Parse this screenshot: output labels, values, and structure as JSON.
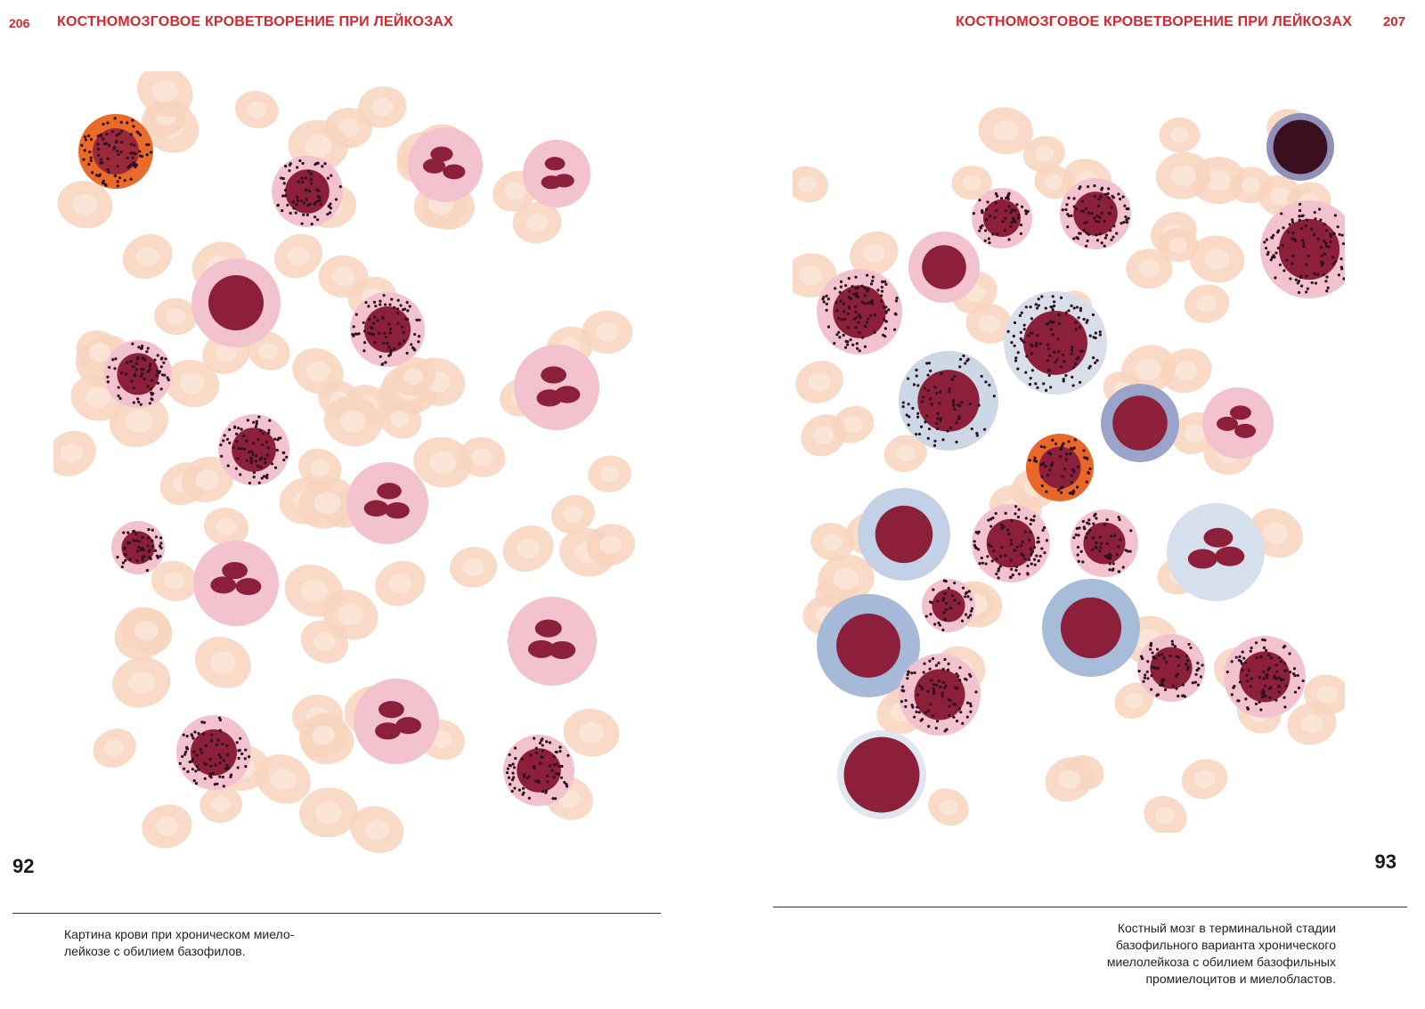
{
  "left_page": {
    "page_number": "206",
    "running_head": "КОСТНОМОЗГОВОЕ КРОВЕТВОРЕНИЕ ПРИ ЛЕЙКОЗАХ",
    "figure_number": "92",
    "caption_lines": [
      "Картина крови при хроническом миело-",
      "лейкозе с обилием базофилов."
    ]
  },
  "right_page": {
    "page_number": "207",
    "running_head": "КОСТНОМОЗГОВОЕ КРОВЕТВОРЕНИЕ ПРИ ЛЕЙКОЗАХ",
    "figure_number": "93",
    "caption_lines": [
      "Костный мозг в терминальной стадии",
      "базофильного варианта хронического",
      "миелолейкоза с обилием базофильных",
      "промиелоцитов и миелобластов."
    ]
  },
  "colors": {
    "accent_red": "#d7262e",
    "rbc": "#f7d3bd",
    "nucleus": "#8c1f3a",
    "cytoplasm_pink": "#f3c2cf",
    "cytoplasm_blue": "#c7d3e6",
    "granule_dark": "#2a1020"
  }
}
